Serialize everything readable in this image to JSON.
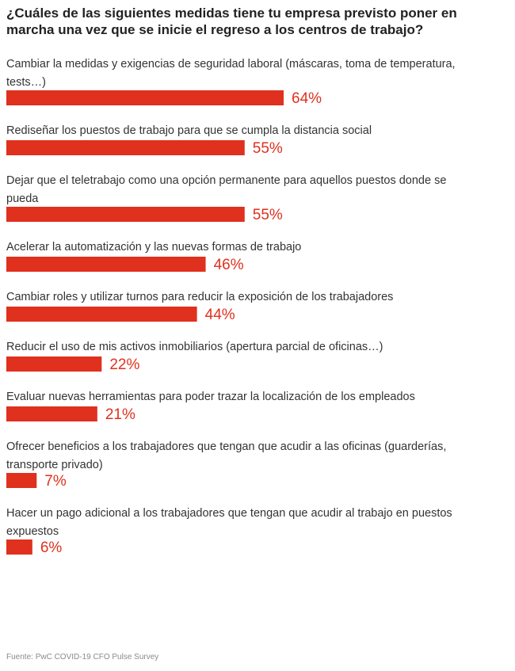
{
  "chart_data": {
    "type": "bar",
    "orientation": "horizontal",
    "title": "¿Cuáles de las siguientes medidas tiene tu empresa previsto poner en marcha una vez que se inicie el regreso a los centros de trabajo?",
    "categories": [
      [
        "Cambiar la medidas y exigencias de seguridad laboral (máscaras, toma de temperatura,",
        "tests…)"
      ],
      [
        "Rediseñar los puestos de trabajo para que se cumpla la distancia social"
      ],
      [
        "Dejar que el teletrabajo como una opción permanente para aquellos puestos donde se",
        "pueda"
      ],
      [
        "Acelerar la automatización y las nuevas formas de trabajo"
      ],
      [
        "Cambiar roles y utilizar turnos para reducir la exposición de los trabajadores"
      ],
      [
        "Reducir el uso de mis activos inmobiliarios (apertura parcial de oficinas…)"
      ],
      [
        "Evaluar nuevas herramientas para poder trazar la localización de los empleados"
      ],
      [
        "Ofrecer beneficios a los trabajadores que tengan que acudir a las oficinas (guarderías,",
        "transporte privado)"
      ],
      [
        "Hacer un pago adicional a los trabajadores que tengan que acudir al trabajo en puestos",
        "expuestos"
      ]
    ],
    "values": [
      64,
      55,
      55,
      46,
      44,
      22,
      21,
      7,
      6
    ],
    "value_labels": [
      "64%",
      "55%",
      "55%",
      "46%",
      "44%",
      "22%",
      "21%",
      "7%",
      "6%"
    ],
    "unit": "%",
    "xlim": [
      0,
      64
    ],
    "bar_color": "#e0301e",
    "label_color": "#e0301e",
    "source": "Fuente: PwC COVID-19 CFO Pulse Survey"
  }
}
